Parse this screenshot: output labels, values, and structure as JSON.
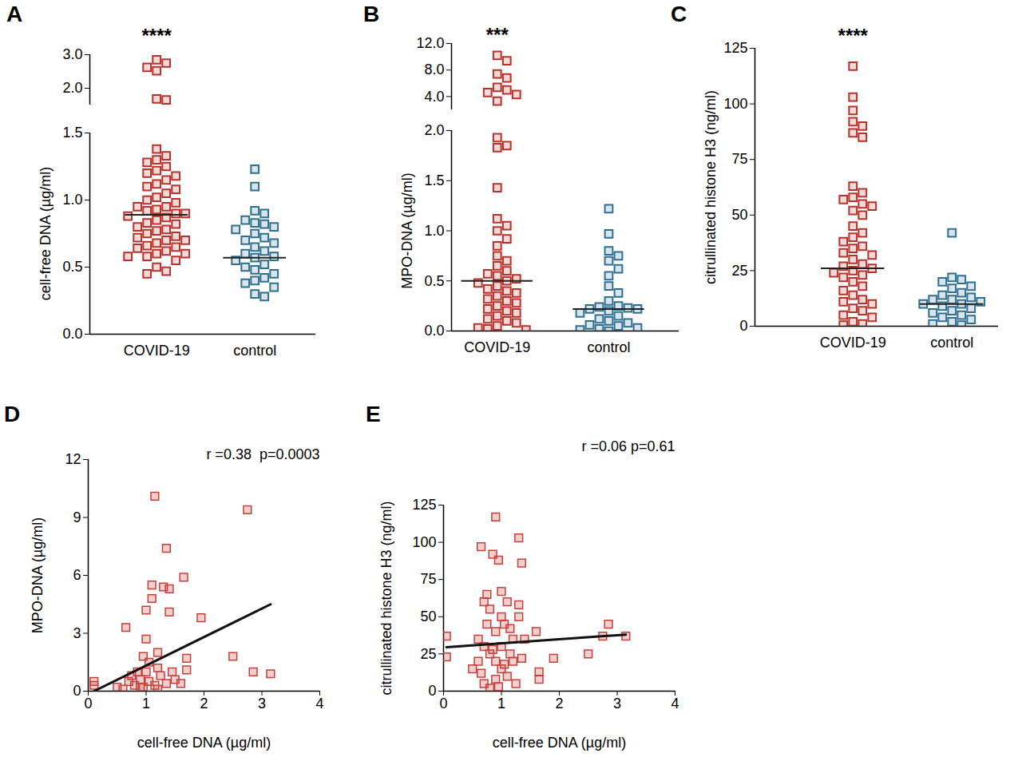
{
  "chart_data": [
    {
      "type": "strip",
      "title": "A",
      "annotation": "****",
      "tick_labels": "y",
      "categories": [
        "COVID-19",
        "control"
      ],
      "values": [
        [
          2.85,
          2.75,
          2.62,
          2.52,
          1.68,
          1.65
        ],
        []
      ],
      "colors": [
        "#b8322b",
        "#2f6f8f"
      ],
      "ylim": [
        1.5,
        3.0
      ],
      "yticks": [
        {
          "value": 2,
          "label": "2.0"
        },
        {
          "value": 3,
          "label": "3.0"
        }
      ]
    },
    {
      "type": "strip",
      "ylabel": "cell-free DNA (µg/ml)",
      "categories": [
        "COVID-19",
        "control"
      ],
      "values": [
        [
          1.38,
          1.33,
          1.3,
          1.28,
          1.25,
          1.22,
          1.2,
          1.18,
          1.15,
          1.12,
          1.1,
          1.08,
          1.05,
          1.02,
          1.0,
          0.98,
          0.95,
          0.95,
          0.93,
          0.92,
          0.9,
          0.9,
          0.88,
          0.87,
          0.85,
          0.83,
          0.82,
          0.8,
          0.78,
          0.77,
          0.75,
          0.73,
          0.72,
          0.7,
          0.7,
          0.68,
          0.66,
          0.65,
          0.64,
          0.62,
          0.6,
          0.6,
          0.58,
          0.58,
          0.55,
          0.5,
          0.47,
          0.45
        ],
        [
          1.23,
          1.1,
          0.92,
          0.9,
          0.85,
          0.83,
          0.82,
          0.8,
          0.78,
          0.75,
          0.72,
          0.7,
          0.68,
          0.65,
          0.62,
          0.6,
          0.58,
          0.57,
          0.55,
          0.52,
          0.5,
          0.48,
          0.45,
          0.42,
          0.4,
          0.38,
          0.35,
          0.3,
          0.28
        ]
      ],
      "medians": [
        0.89,
        0.57
      ],
      "colors": [
        "#b8322b",
        "#2f6f8f"
      ],
      "ylim": [
        0,
        1.5
      ],
      "yticks": [
        {
          "value": 0,
          "label": "0.0"
        },
        {
          "value": 0.5,
          "label": "0.5"
        },
        {
          "value": 1,
          "label": "1.0"
        },
        {
          "value": 1.5,
          "label": "1.5"
        }
      ]
    },
    {
      "type": "strip",
      "title": "B",
      "annotation": "***",
      "tick_labels": "y",
      "categories": [
        "COVID-19",
        "control"
      ],
      "values": [
        [
          10.2,
          9.4,
          7.4,
          6.8,
          5.4,
          5.0,
          4.6,
          4.3,
          3.3
        ],
        []
      ],
      "colors": [
        "#b8322b",
        "#2f6f8f"
      ],
      "ylim": [
        2,
        12
      ],
      "yticks": [
        {
          "value": 4,
          "label": "4.0"
        },
        {
          "value": 8,
          "label": "8.0"
        },
        {
          "value": 12,
          "label": "12.0"
        }
      ]
    },
    {
      "type": "strip",
      "ylabel": "MPO-DNA (µg/ml)",
      "categories": [
        "COVID-19",
        "control"
      ],
      "values": [
        [
          1.93,
          1.85,
          1.83,
          1.43,
          1.12,
          1.05,
          1.0,
          0.92,
          0.85,
          0.75,
          0.7,
          0.65,
          0.6,
          0.57,
          0.55,
          0.52,
          0.5,
          0.48,
          0.45,
          0.42,
          0.4,
          0.38,
          0.35,
          0.32,
          0.3,
          0.28,
          0.25,
          0.22,
          0.2,
          0.18,
          0.15,
          0.12,
          0.1,
          0.08,
          0.05,
          0.03,
          0.02,
          0.01
        ],
        [
          1.22,
          0.97,
          0.8,
          0.75,
          0.7,
          0.62,
          0.55,
          0.45,
          0.38,
          0.3,
          0.25,
          0.24,
          0.23,
          0.22,
          0.22,
          0.2,
          0.18,
          0.15,
          0.12,
          0.1,
          0.08,
          0.06,
          0.05,
          0.03,
          0.02,
          0.01,
          0.0
        ]
      ],
      "medians": [
        0.5,
        0.22
      ],
      "colors": [
        "#b8322b",
        "#2f6f8f"
      ],
      "ylim": [
        0,
        2
      ],
      "yticks": [
        {
          "value": 0,
          "label": "0.0"
        },
        {
          "value": 0.5,
          "label": "0.5"
        },
        {
          "value": 1,
          "label": "1.0"
        },
        {
          "value": 1.5,
          "label": "1.5"
        },
        {
          "value": 2,
          "label": "2.0"
        }
      ]
    },
    {
      "type": "strip",
      "title": "C",
      "annotation": "****",
      "ylabel": "citrullinated histone H3 (ng/ml)",
      "categories": [
        "COVID-19",
        "control"
      ],
      "values": [
        [
          117,
          103,
          97,
          92,
          90,
          87,
          85,
          63,
          60,
          58,
          57,
          55,
          54,
          52,
          50,
          45,
          42,
          40,
          38,
          36,
          35,
          33,
          32,
          30,
          28,
          27,
          26,
          25,
          24,
          23,
          22,
          20,
          18,
          16,
          14,
          12,
          11,
          10,
          8,
          7,
          5,
          4,
          2,
          1,
          0.5
        ],
        [
          42,
          22,
          21,
          20,
          18,
          17,
          15,
          14,
          13,
          12,
          12,
          11,
          10,
          10,
          9,
          8,
          7,
          6,
          5,
          4,
          3,
          2,
          1,
          0.5
        ]
      ],
      "medians": [
        26,
        10
      ],
      "colors": [
        "#b8322b",
        "#2f6f8f"
      ],
      "ylim": [
        0,
        125
      ],
      "yticks": [
        0,
        25,
        50,
        75,
        100,
        125
      ]
    },
    {
      "type": "scatter",
      "title": "D",
      "annotation": "r =0.38  p=0.0003",
      "xlabel": "cell-free DNA (µg/ml)",
      "ylabel": "MPO-DNA (µg/ml)",
      "x": [
        0.1,
        0.1,
        0.5,
        0.6,
        0.65,
        0.7,
        0.75,
        0.8,
        0.85,
        0.9,
        0.9,
        0.95,
        1.0,
        1.0,
        1.0,
        1.05,
        1.05,
        1.1,
        1.1,
        1.15,
        1.15,
        1.2,
        1.2,
        1.25,
        1.3,
        1.35,
        1.35,
        1.4,
        1.4,
        1.45,
        1.5,
        1.6,
        1.65,
        1.7,
        1.7,
        1.95,
        2.5,
        2.75,
        2.85,
        3.15,
        1.2,
        0.95
      ],
      "y": [
        0.5,
        0.3,
        0.2,
        0.1,
        3.3,
        0.5,
        0.8,
        0.3,
        1.0,
        0.2,
        0.6,
        1.8,
        4.2,
        1.0,
        2.7,
        0.5,
        1.5,
        4.8,
        5.5,
        0.3,
        10.1,
        1.2,
        2.0,
        0.8,
        5.4,
        7.4,
        0.4,
        4.1,
        5.3,
        1.0,
        0.6,
        0.4,
        5.9,
        1.1,
        1.7,
        3.8,
        1.8,
        9.4,
        1.0,
        0.9,
        0.1,
        0.2
      ],
      "trend_line": {
        "x": [
          0.1,
          3.15
        ],
        "y": [
          0,
          4.5
        ]
      },
      "color": "#c8403a",
      "xlim": [
        0,
        4
      ],
      "xticks": [
        0,
        1,
        2,
        3,
        4
      ],
      "ylim": [
        0,
        12
      ],
      "yticks": [
        0,
        3,
        6,
        9,
        12
      ]
    },
    {
      "type": "scatter",
      "title": "E",
      "annotation": "r =0.06 p=0.61",
      "xlabel": "cell-free DNA (µg/ml)",
      "ylabel": "citrullinated histone H3 (ng/ml)",
      "x": [
        0.05,
        0.05,
        0.65,
        0.7,
        0.75,
        0.8,
        0.85,
        0.9,
        0.95,
        1.0,
        1.05,
        1.1,
        1.3,
        1.35,
        1.3,
        1.3,
        0.6,
        0.7,
        0.8,
        0.9,
        1.0,
        1.1,
        0.7,
        0.8,
        0.9,
        1.0,
        1.2,
        1.4,
        1.6,
        1.65,
        1.65,
        1.9,
        2.5,
        2.75,
        2.85,
        3.15,
        0.5,
        0.6,
        0.65,
        1.15,
        1.2,
        1.25,
        0.9,
        1.0,
        0.85,
        0.95,
        1.05,
        1.15,
        0.75,
        1.35
      ],
      "y": [
        37,
        23,
        97,
        60,
        65,
        55,
        92,
        117,
        88,
        67,
        45,
        60,
        103,
        86,
        58,
        50,
        35,
        30,
        25,
        20,
        15,
        10,
        5,
        2,
        8,
        30,
        35,
        35,
        40,
        13,
        8,
        22,
        25,
        37,
        45,
        37,
        15,
        20,
        12,
        25,
        20,
        5,
        40,
        50,
        28,
        3,
        18,
        42,
        45,
        22
      ],
      "trend_line": {
        "x": [
          0.05,
          3.15
        ],
        "y": [
          29.5,
          38
        ]
      },
      "color": "#c8403a",
      "xlim": [
        0,
        4
      ],
      "xticks": [
        0,
        1,
        2,
        3,
        4
      ],
      "ylim": [
        0,
        125
      ],
      "yticks": [
        0,
        25,
        50,
        75,
        100,
        125
      ]
    }
  ]
}
